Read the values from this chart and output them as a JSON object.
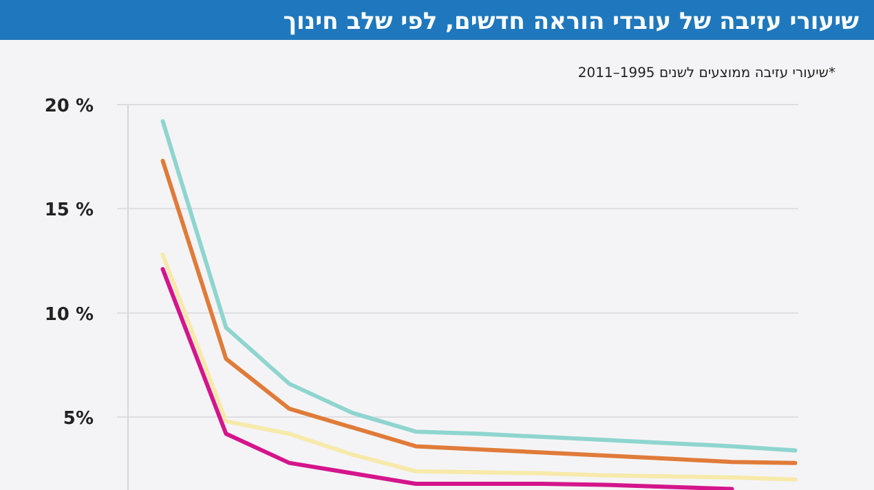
{
  "chart_data": {
    "type": "line",
    "title": "שיעורי עזיבה של עובדי הוראה חדשים, לפי שלב חינוך",
    "subtitle": "*שיעורי עזיבה ממוצעים לשנים 1995–2011",
    "categories": [
      null,
      null,
      null,
      null,
      null,
      null,
      null,
      null,
      null,
      null,
      null
    ],
    "ylim": [
      1.5,
      20
    ],
    "yticks": [
      {
        "value": 5,
        "label": "5%"
      },
      {
        "value": 10,
        "label": "10 %"
      },
      {
        "value": 15,
        "label": "15 %"
      },
      {
        "value": 20,
        "label": "20 %"
      }
    ],
    "grid": "y",
    "marker": "none",
    "line_style": "solid",
    "series": [
      {
        "color": "#8fd5cf",
        "values": [
          19.2,
          9.3,
          6.6,
          5.2,
          4.3,
          4.2,
          4.05,
          3.9,
          3.75,
          3.6,
          3.4
        ]
      },
      {
        "color": "#e07b39",
        "values": [
          17.3,
          7.8,
          5.4,
          4.5,
          3.6,
          3.45,
          3.3,
          3.15,
          3.0,
          2.85,
          2.8
        ]
      },
      {
        "color": "#f7e9a9",
        "values": [
          12.8,
          4.8,
          4.2,
          3.2,
          2.4,
          2.35,
          2.3,
          2.2,
          2.15,
          2.1,
          2.0
        ]
      },
      {
        "color": "#d4158c",
        "values": [
          12.1,
          4.2,
          2.8,
          2.3,
          1.8,
          1.8,
          1.8,
          1.75,
          1.65,
          1.55,
          null
        ]
      }
    ]
  }
}
